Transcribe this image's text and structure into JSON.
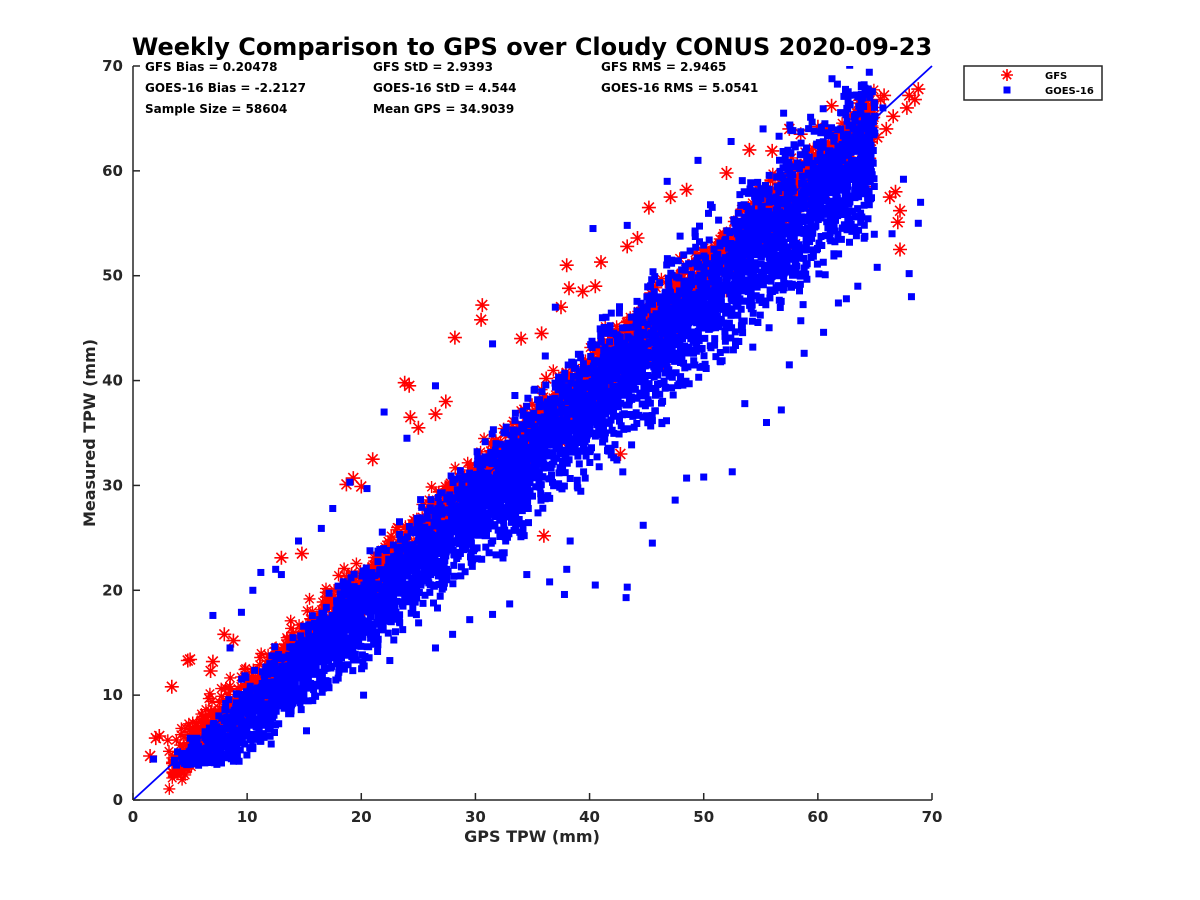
{
  "chart_data": {
    "type": "scatter",
    "title": "Weekly Comparison to GPS over Cloudy CONUS 2020-09-23",
    "xlabel": "GPS TPW (mm)",
    "ylabel": "Measured TPW (mm)",
    "xlim": [
      0,
      70
    ],
    "ylim": [
      0,
      70
    ],
    "x_ticks": [
      "0",
      "10",
      "20",
      "30",
      "40",
      "50",
      "60",
      "70"
    ],
    "y_ticks": [
      "0",
      "10",
      "20",
      "30",
      "40",
      "50",
      "60",
      "70"
    ],
    "grid": false,
    "legend_position": "outside-top-right",
    "stats": [
      [
        "GFS Bias = 0.20478",
        "GFS StD = 2.9393",
        "GFS RMS = 2.9465"
      ],
      [
        "GOES-16 Bias = -2.2127",
        "GOES-16 StD = 4.544",
        "GOES-16 RMS = 5.0541"
      ],
      [
        "Sample Size = 58604",
        "Mean GPS = 34.9039",
        ""
      ]
    ],
    "reference_line": {
      "x": [
        0,
        70
      ],
      "y": [
        0,
        70
      ],
      "color": "#0000ff"
    },
    "series": [
      {
        "name": "GFS",
        "marker": "asterisk",
        "color": "#ff0000",
        "points": [
          [
            1.5,
            4.2
          ],
          [
            2.0,
            5.9
          ],
          [
            2.3,
            6.1
          ],
          [
            3.4,
            10.8
          ],
          [
            4.2,
            3.7
          ],
          [
            4.8,
            13.3
          ],
          [
            5.0,
            13.4
          ],
          [
            6.8,
            12.3
          ],
          [
            7.0,
            13.2
          ],
          [
            8.0,
            15.8
          ],
          [
            8.8,
            15.2
          ],
          [
            13.0,
            23.1
          ],
          [
            14.8,
            23.5
          ],
          [
            18.7,
            30.1
          ],
          [
            19.3,
            30.7
          ],
          [
            20.0,
            29.9
          ],
          [
            21.0,
            32.5
          ],
          [
            23.8,
            39.8
          ],
          [
            24.2,
            39.5
          ],
          [
            24.3,
            36.5
          ],
          [
            25.0,
            35.5
          ],
          [
            26.5,
            36.8
          ],
          [
            27.4,
            38.0
          ],
          [
            28.2,
            44.1
          ],
          [
            30.6,
            47.2
          ],
          [
            30.5,
            45.8
          ],
          [
            34.0,
            44.0
          ],
          [
            35.8,
            44.5
          ],
          [
            36.2,
            40.2
          ],
          [
            37.5,
            47.0
          ],
          [
            38.0,
            51.0
          ],
          [
            38.2,
            48.8
          ],
          [
            39.4,
            48.5
          ],
          [
            41.0,
            51.3
          ],
          [
            43.3,
            52.8
          ],
          [
            44.2,
            53.6
          ],
          [
            45.2,
            56.5
          ],
          [
            47.1,
            57.5
          ],
          [
            48.5,
            58.2
          ],
          [
            52.0,
            59.8
          ],
          [
            56.0,
            61.9
          ],
          [
            57.5,
            64.0
          ],
          [
            58.5,
            63.5
          ],
          [
            60.0,
            64.2
          ],
          [
            61.2,
            66.2
          ],
          [
            62.0,
            63.0
          ],
          [
            63.8,
            64.5
          ],
          [
            64.5,
            61.2
          ],
          [
            64.2,
            58.5
          ],
          [
            65.2,
            63.2
          ],
          [
            65.5,
            66.8
          ],
          [
            65.8,
            67.2
          ],
          [
            66.3,
            57.5
          ],
          [
            66.8,
            58.0
          ],
          [
            66.0,
            64.0
          ],
          [
            66.6,
            65.2
          ],
          [
            67.2,
            56.2
          ],
          [
            67.0,
            55.1
          ],
          [
            67.2,
            52.5
          ],
          [
            67.8,
            66.0
          ],
          [
            68.0,
            67.2
          ],
          [
            68.8,
            67.8
          ],
          [
            68.5,
            66.8
          ],
          [
            36.0,
            25.2
          ],
          [
            33.3,
            28.5
          ],
          [
            42.7,
            33.0
          ],
          [
            46.5,
            41.5
          ],
          [
            58.0,
            53.0
          ],
          [
            54.0,
            62.0
          ],
          [
            40.5,
            49.0
          ]
        ]
      },
      {
        "name": "GOES-16",
        "marker": "square",
        "color": "#0000ff",
        "points": [
          [
            1.8,
            3.9
          ],
          [
            3.9,
            4.6
          ],
          [
            5.5,
            3.8
          ],
          [
            6.2,
            3.7
          ],
          [
            8.8,
            3.7
          ],
          [
            10.5,
            4.9
          ],
          [
            11.2,
            5.6
          ],
          [
            7.0,
            17.6
          ],
          [
            9.5,
            17.9
          ],
          [
            10.5,
            20.0
          ],
          [
            11.2,
            21.7
          ],
          [
            13.0,
            21.5
          ],
          [
            14.5,
            24.7
          ],
          [
            16.5,
            25.9
          ],
          [
            19.0,
            30.3
          ],
          [
            20.5,
            29.7
          ],
          [
            15.2,
            6.6
          ],
          [
            20.2,
            10.0
          ],
          [
            22.5,
            13.3
          ],
          [
            26.5,
            14.5
          ],
          [
            28.0,
            15.8
          ],
          [
            29.5,
            17.2
          ],
          [
            31.5,
            17.7
          ],
          [
            33.0,
            18.7
          ],
          [
            34.5,
            21.5
          ],
          [
            36.5,
            20.8
          ],
          [
            38.0,
            22.0
          ],
          [
            37.8,
            19.6
          ],
          [
            38.3,
            24.7
          ],
          [
            40.5,
            20.5
          ],
          [
            43.2,
            19.3
          ],
          [
            43.3,
            20.3
          ],
          [
            45.5,
            24.5
          ],
          [
            44.7,
            26.2
          ],
          [
            47.5,
            28.6
          ],
          [
            48.5,
            30.7
          ],
          [
            50.0,
            30.8
          ],
          [
            52.5,
            31.3
          ],
          [
            53.6,
            37.8
          ],
          [
            55.5,
            36.0
          ],
          [
            56.8,
            37.2
          ],
          [
            57.5,
            41.5
          ],
          [
            58.8,
            42.6
          ],
          [
            60.5,
            44.6
          ],
          [
            61.8,
            47.4
          ],
          [
            62.5,
            47.8
          ],
          [
            63.5,
            49.0
          ],
          [
            65.2,
            50.8
          ],
          [
            66.5,
            54.0
          ],
          [
            68.0,
            50.2
          ],
          [
            68.2,
            48.0
          ],
          [
            68.8,
            55.0
          ],
          [
            69.0,
            57.0
          ],
          [
            67.5,
            59.2
          ],
          [
            65.7,
            66.0
          ],
          [
            63.2,
            62.8
          ],
          [
            57.0,
            65.5
          ],
          [
            55.2,
            64.0
          ],
          [
            52.4,
            62.8
          ],
          [
            49.5,
            61.0
          ],
          [
            46.8,
            59.0
          ],
          [
            43.3,
            54.8
          ],
          [
            40.3,
            54.5
          ],
          [
            37.0,
            47.0
          ],
          [
            31.5,
            43.5
          ],
          [
            26.5,
            39.5
          ],
          [
            22.0,
            37.0
          ],
          [
            24.0,
            34.5
          ],
          [
            17.5,
            27.8
          ],
          [
            12.5,
            22.0
          ],
          [
            8.5,
            14.5
          ]
        ]
      }
    ]
  }
}
